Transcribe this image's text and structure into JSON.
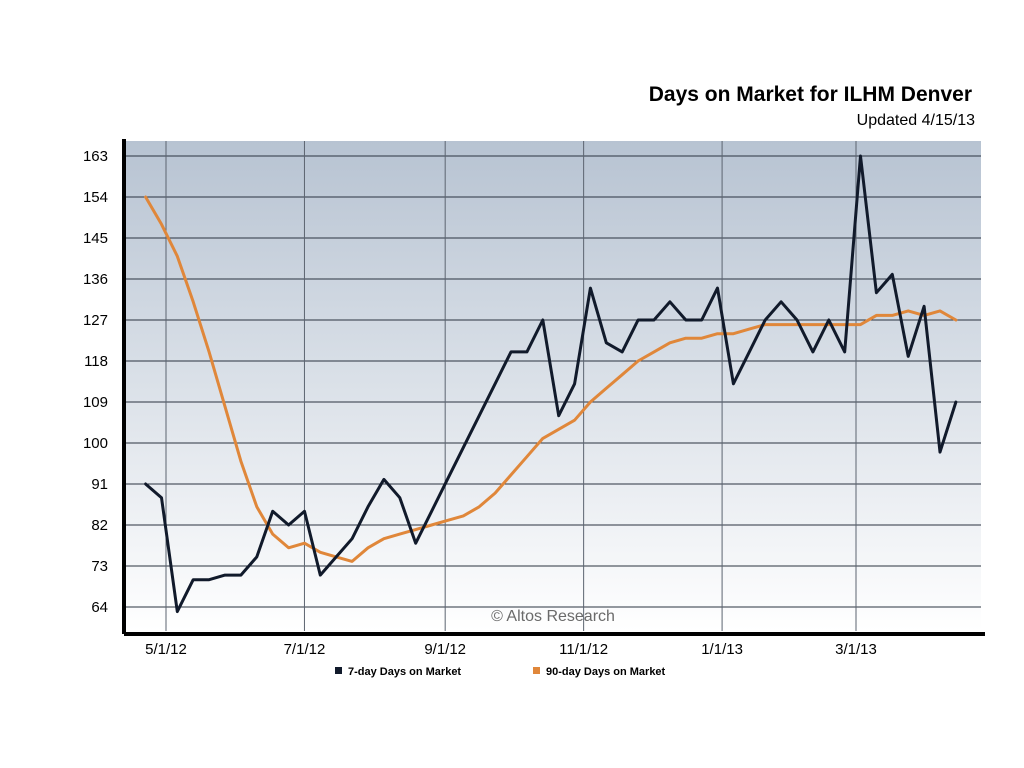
{
  "chart_data": {
    "type": "line",
    "title": "Days on Market for ILHM Denver",
    "subtitle": "Updated 4/15/13",
    "watermark": "© Altos Research",
    "xlabel": "",
    "ylabel": "",
    "x_ticks": [
      "5/1/12",
      "7/1/12",
      "9/1/12",
      "11/1/12",
      "1/1/13",
      "3/1/13"
    ],
    "y_ticks": [
      64,
      73,
      82,
      91,
      100,
      109,
      118,
      127,
      136,
      145,
      154,
      163
    ],
    "ylim": [
      60,
      168
    ],
    "grid": true,
    "legend_position": "bottom",
    "x": [
      "2012-04-22",
      "2012-04-29",
      "2012-05-06",
      "2012-05-13",
      "2012-05-20",
      "2012-05-27",
      "2012-06-03",
      "2012-06-10",
      "2012-06-17",
      "2012-06-24",
      "2012-07-01",
      "2012-07-08",
      "2012-07-15",
      "2012-07-22",
      "2012-07-29",
      "2012-08-05",
      "2012-08-12",
      "2012-08-19",
      "2012-08-26",
      "2012-09-02",
      "2012-09-09",
      "2012-09-16",
      "2012-09-23",
      "2012-09-30",
      "2012-10-07",
      "2012-10-14",
      "2012-10-21",
      "2012-10-28",
      "2012-11-04",
      "2012-11-11",
      "2012-11-18",
      "2012-11-25",
      "2012-12-02",
      "2012-12-09",
      "2012-12-16",
      "2012-12-23",
      "2012-12-30",
      "2013-01-06",
      "2013-01-13",
      "2013-01-20",
      "2013-01-27",
      "2013-02-03",
      "2013-02-10",
      "2013-02-17",
      "2013-02-24",
      "2013-03-03",
      "2013-03-10",
      "2013-03-17",
      "2013-03-24",
      "2013-03-31",
      "2013-04-07",
      "2013-04-14"
    ],
    "series": [
      {
        "name": "7-day Days on Market",
        "color": "#111a2b",
        "values": [
          91,
          88,
          63,
          70,
          70,
          71,
          71,
          75,
          85,
          82,
          85,
          71,
          75,
          79,
          86,
          92,
          88,
          78,
          85,
          92,
          99,
          106,
          113,
          120,
          120,
          127,
          106,
          113,
          134,
          122,
          120,
          127,
          127,
          131,
          127,
          127,
          134,
          113,
          120,
          127,
          131,
          127,
          120,
          127,
          120,
          163,
          133,
          137,
          119,
          130,
          98,
          109
        ]
      },
      {
        "name": "90-day Days on Market",
        "color": "#e0873a",
        "values": [
          154,
          148,
          141,
          131,
          120,
          108,
          96,
          86,
          80,
          77,
          78,
          76,
          75,
          74,
          77,
          79,
          80,
          81,
          82,
          83,
          84,
          86,
          89,
          93,
          97,
          101,
          103,
          105,
          109,
          112,
          115,
          118,
          120,
          122,
          123,
          123,
          124,
          124,
          125,
          126,
          126,
          126,
          126,
          126,
          126,
          126,
          128,
          128,
          129,
          128,
          129,
          127
        ]
      }
    ]
  }
}
